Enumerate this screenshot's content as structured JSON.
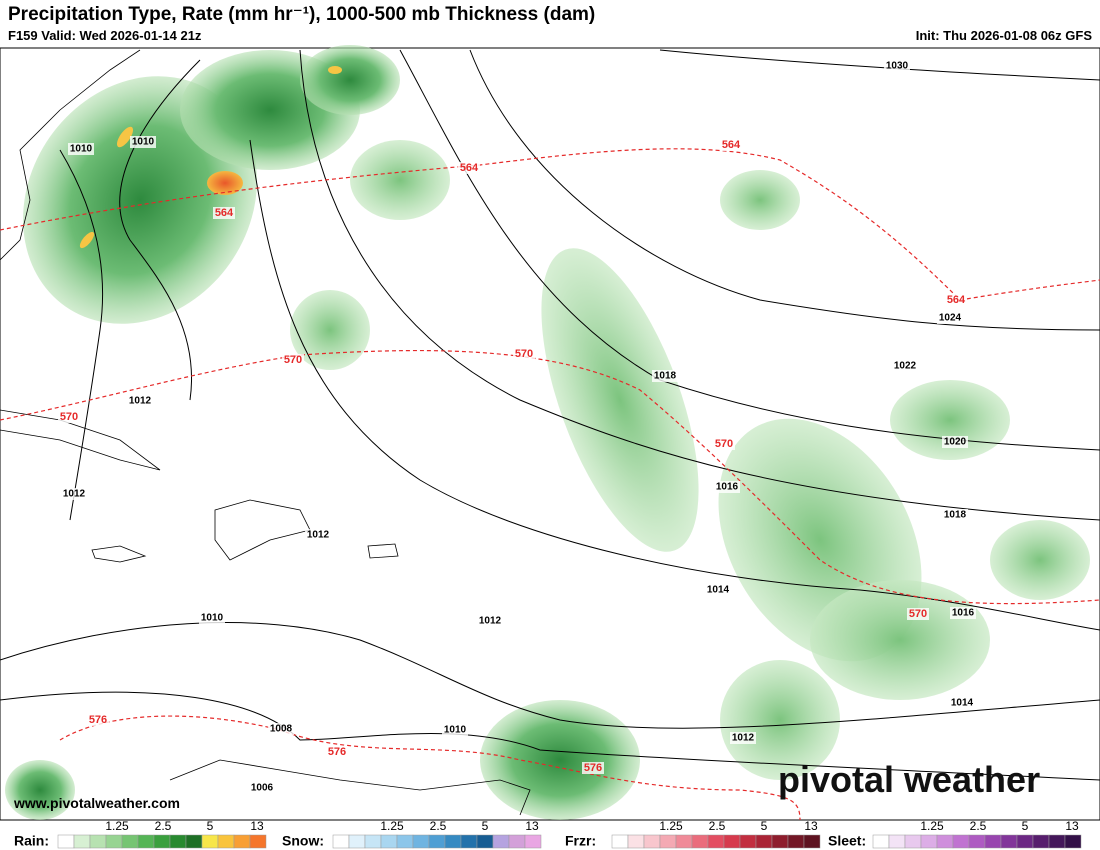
{
  "header": {
    "title": "Precipitation Type, Rate (mm hr⁻¹), 1000-500 mb Thickness (dam)",
    "valid": "F159 Valid: Wed 2026-01-14 21z",
    "init": "Init: Thu 2026-01-08 06z GFS"
  },
  "isobar_labels": [
    "1030",
    "1010",
    "1010",
    "1024",
    "1022",
    "1018",
    "1020",
    "1016",
    "1018",
    "1012",
    "1012",
    "1012",
    "1014",
    "1012",
    "1016",
    "1010",
    "1014",
    "1008",
    "1010",
    "1012",
    "1006"
  ],
  "thickness_labels": [
    "564",
    "564",
    "564",
    "564",
    "570",
    "570",
    "570",
    "570",
    "570",
    "576",
    "576",
    "576"
  ],
  "watermark": "www.pivotalweather.com",
  "logo": "pivotal weather",
  "legend": [
    {
      "label": "Rain:",
      "ticks": [
        "1.25",
        "2.5",
        "5",
        "13"
      ]
    },
    {
      "label": "Snow:",
      "ticks": [
        "1.25",
        "2.5",
        "5",
        "13"
      ]
    },
    {
      "label": "Frzr:",
      "ticks": [
        "1.25",
        "2.5",
        "5",
        "13"
      ]
    },
    {
      "label": "Sleet:",
      "ticks": [
        "1.25",
        "2.5",
        "5",
        "13"
      ]
    }
  ]
}
